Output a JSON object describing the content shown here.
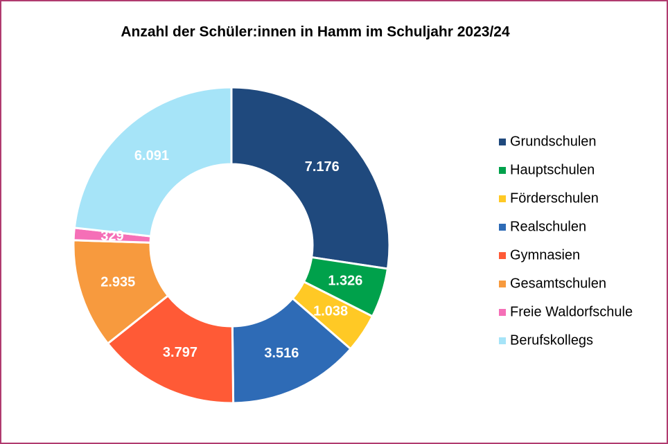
{
  "chart_data": {
    "type": "donut",
    "title": "Anzahl der Schüler:innen in Hamm im Schuljahr 2023/24",
    "categories": [
      "Grundschulen",
      "Hauptschulen",
      "Förderschulen",
      "Realschulen",
      "Gymnasien",
      "Gesamtschulen",
      "Freie Waldorfschule",
      "Berufskollegs"
    ],
    "values": [
      7176,
      1326,
      1038,
      3516,
      3797,
      2935,
      329,
      6091
    ],
    "value_labels": [
      "7.176",
      "1.326",
      "1.038",
      "3.516",
      "3.797",
      "2.935",
      "329",
      "6.091"
    ],
    "colors": [
      "#1f497d",
      "#00a14b",
      "#ffc925",
      "#2e6bb6",
      "#ff5a36",
      "#f79a3e",
      "#f56fb7",
      "#a6e4f8"
    ],
    "legend": "right"
  }
}
